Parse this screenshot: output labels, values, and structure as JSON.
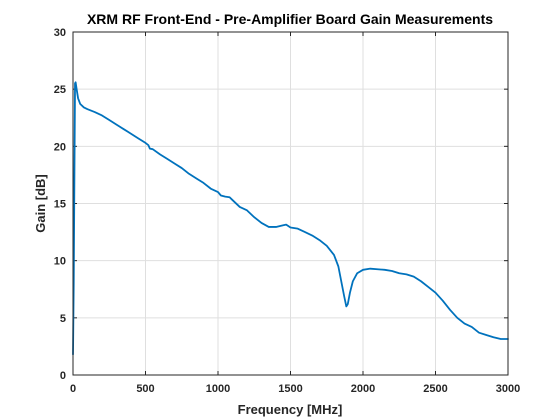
{
  "chart_data": {
    "type": "line",
    "title": "XRM RF Front-End - Pre-Amplifier Board Gain Measurements",
    "xlabel": "Frequency [MHz]",
    "ylabel": "Gain [dB]",
    "xlim": [
      0,
      3000
    ],
    "ylim": [
      0,
      30
    ],
    "xticks": [
      0,
      500,
      1000,
      1500,
      2000,
      2500,
      3000
    ],
    "yticks": [
      0,
      5,
      10,
      15,
      20,
      25,
      30
    ],
    "grid": true,
    "series": [
      {
        "color": "#0072BD",
        "points": [
          [
            0,
            1.8
          ],
          [
            5,
            8
          ],
          [
            10,
            18
          ],
          [
            14,
            25.5
          ],
          [
            18,
            25.6
          ],
          [
            25,
            25.0
          ],
          [
            35,
            24.2
          ],
          [
            50,
            23.7
          ],
          [
            75,
            23.4
          ],
          [
            100,
            23.25
          ],
          [
            150,
            23.0
          ],
          [
            200,
            22.7
          ],
          [
            250,
            22.3
          ],
          [
            300,
            21.9
          ],
          [
            350,
            21.5
          ],
          [
            400,
            21.1
          ],
          [
            450,
            20.7
          ],
          [
            500,
            20.3
          ],
          [
            520,
            20.1
          ],
          [
            530,
            19.8
          ],
          [
            550,
            19.75
          ],
          [
            600,
            19.3
          ],
          [
            650,
            18.9
          ],
          [
            700,
            18.5
          ],
          [
            750,
            18.1
          ],
          [
            800,
            17.6
          ],
          [
            850,
            17.2
          ],
          [
            900,
            16.8
          ],
          [
            950,
            16.3
          ],
          [
            1000,
            16.0
          ],
          [
            1020,
            15.7
          ],
          [
            1050,
            15.6
          ],
          [
            1080,
            15.55
          ],
          [
            1100,
            15.3
          ],
          [
            1150,
            14.7
          ],
          [
            1200,
            14.4
          ],
          [
            1250,
            13.8
          ],
          [
            1300,
            13.3
          ],
          [
            1350,
            12.95
          ],
          [
            1400,
            12.95
          ],
          [
            1450,
            13.1
          ],
          [
            1470,
            13.15
          ],
          [
            1500,
            12.9
          ],
          [
            1550,
            12.8
          ],
          [
            1600,
            12.5
          ],
          [
            1650,
            12.2
          ],
          [
            1700,
            11.8
          ],
          [
            1750,
            11.3
          ],
          [
            1800,
            10.5
          ],
          [
            1830,
            9.5
          ],
          [
            1850,
            8.2
          ],
          [
            1870,
            6.9
          ],
          [
            1885,
            6.0
          ],
          [
            1895,
            6.2
          ],
          [
            1910,
            7.2
          ],
          [
            1930,
            8.2
          ],
          [
            1960,
            8.9
          ],
          [
            2000,
            9.2
          ],
          [
            2050,
            9.3
          ],
          [
            2100,
            9.25
          ],
          [
            2150,
            9.2
          ],
          [
            2200,
            9.1
          ],
          [
            2250,
            8.9
          ],
          [
            2300,
            8.8
          ],
          [
            2350,
            8.6
          ],
          [
            2400,
            8.2
          ],
          [
            2450,
            7.7
          ],
          [
            2500,
            7.2
          ],
          [
            2550,
            6.5
          ],
          [
            2600,
            5.7
          ],
          [
            2650,
            5.0
          ],
          [
            2700,
            4.5
          ],
          [
            2750,
            4.2
          ],
          [
            2800,
            3.7
          ],
          [
            2850,
            3.5
          ],
          [
            2900,
            3.3
          ],
          [
            2950,
            3.15
          ],
          [
            3000,
            3.15
          ]
        ]
      }
    ]
  }
}
